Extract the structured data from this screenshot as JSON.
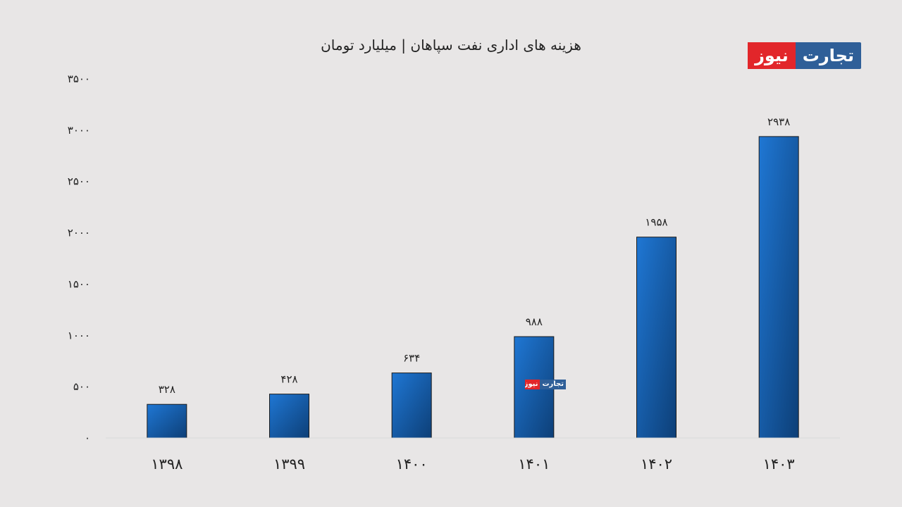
{
  "title": "هزینه های اداری نفت سپاهان | میلیارد تومان",
  "logo": {
    "part_a": "تجارت",
    "part_b": "نیوز"
  },
  "colors": {
    "bar_light": "#1f77d4",
    "bar_dark": "#0d3f77",
    "axis": "#d9d9d9",
    "text": "#222222"
  },
  "chart_data": {
    "type": "bar",
    "title": "هزینه های اداری نفت سپاهان | میلیارد تومان",
    "categories": [
      "۱۳۹۸",
      "۱۳۹۹",
      "۱۴۰۰",
      "۱۴۰۱",
      "۱۴۰۲",
      "۱۴۰۳"
    ],
    "values": [
      328,
      428,
      634,
      988,
      1958,
      2938
    ],
    "value_labels": [
      "۳۲۸",
      "۴۲۸",
      "۶۳۴",
      "۹۸۸",
      "۱۹۵۸",
      "۲۹۳۸"
    ],
    "ylim": [
      0,
      3500
    ],
    "yticks": [
      0,
      500,
      1000,
      1500,
      2000,
      2500,
      3000,
      3500
    ],
    "ytick_labels": [
      "۰",
      "۵۰۰",
      "۱۰۰۰",
      "۱۵۰۰",
      "۲۰۰۰",
      "۲۵۰۰",
      "۳۰۰۰",
      "۳۵۰۰"
    ],
    "grid": false,
    "legend": "none"
  }
}
